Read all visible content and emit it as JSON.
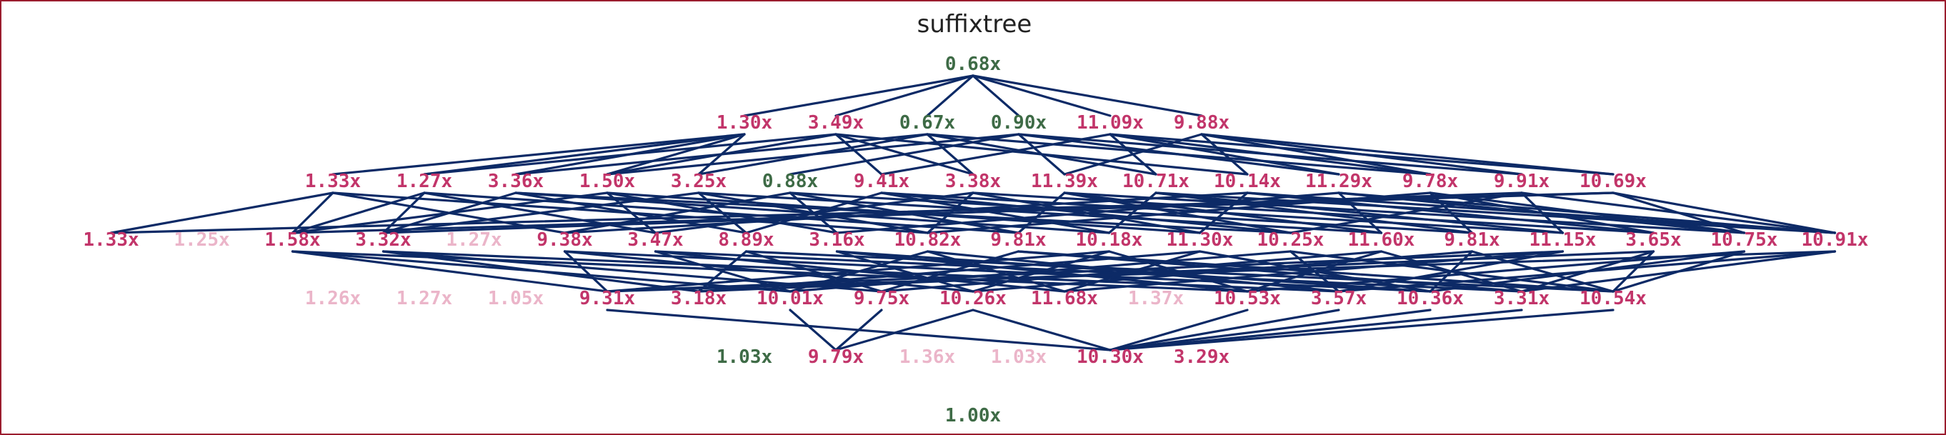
{
  "title": "suffixtree",
  "colors": {
    "edge": "#0d2a66",
    "fast": "#3e6b46",
    "slow": "#c2356a",
    "faded": "#ebb5c9",
    "frame": "#9b1c2e"
  },
  "levels": [
    [
      {
        "label": "0.68x",
        "kind": "fast"
      }
    ],
    [
      {
        "label": "1.30x",
        "kind": "slow"
      },
      {
        "label": "3.49x",
        "kind": "slow"
      },
      {
        "label": "0.67x",
        "kind": "fast"
      },
      {
        "label": "0.90x",
        "kind": "fast"
      },
      {
        "label": "11.09x",
        "kind": "slow"
      },
      {
        "label": "9.88x",
        "kind": "slow"
      }
    ],
    [
      {
        "label": "1.33x",
        "kind": "slow"
      },
      {
        "label": "1.27x",
        "kind": "slow"
      },
      {
        "label": "3.36x",
        "kind": "slow"
      },
      {
        "label": "1.50x",
        "kind": "slow"
      },
      {
        "label": "3.25x",
        "kind": "slow"
      },
      {
        "label": "0.88x",
        "kind": "fast"
      },
      {
        "label": "9.41x",
        "kind": "slow"
      },
      {
        "label": "3.38x",
        "kind": "slow"
      },
      {
        "label": "11.39x",
        "kind": "slow"
      },
      {
        "label": "10.71x",
        "kind": "slow"
      },
      {
        "label": "10.14x",
        "kind": "slow"
      },
      {
        "label": "11.29x",
        "kind": "slow"
      },
      {
        "label": "9.78x",
        "kind": "slow"
      },
      {
        "label": "9.91x",
        "kind": "slow"
      },
      {
        "label": "10.69x",
        "kind": "slow"
      }
    ],
    [
      {
        "label": "1.33x",
        "kind": "slow"
      },
      {
        "label": "1.25x",
        "kind": "faded"
      },
      {
        "label": "1.58x",
        "kind": "slow"
      },
      {
        "label": "3.32x",
        "kind": "slow"
      },
      {
        "label": "1.27x",
        "kind": "faded"
      },
      {
        "label": "9.38x",
        "kind": "slow"
      },
      {
        "label": "3.47x",
        "kind": "slow"
      },
      {
        "label": "8.89x",
        "kind": "slow"
      },
      {
        "label": "3.16x",
        "kind": "slow"
      },
      {
        "label": "10.82x",
        "kind": "slow"
      },
      {
        "label": "9.81x",
        "kind": "slow"
      },
      {
        "label": "10.18x",
        "kind": "slow"
      },
      {
        "label": "11.30x",
        "kind": "slow"
      },
      {
        "label": "10.25x",
        "kind": "slow"
      },
      {
        "label": "11.60x",
        "kind": "slow"
      },
      {
        "label": "9.81x",
        "kind": "slow"
      },
      {
        "label": "11.15x",
        "kind": "slow"
      },
      {
        "label": "3.65x",
        "kind": "slow"
      },
      {
        "label": "10.75x",
        "kind": "slow"
      },
      {
        "label": "10.91x",
        "kind": "slow"
      }
    ],
    [
      {
        "label": "1.26x",
        "kind": "faded"
      },
      {
        "label": "1.27x",
        "kind": "faded"
      },
      {
        "label": "1.05x",
        "kind": "faded"
      },
      {
        "label": "9.31x",
        "kind": "slow"
      },
      {
        "label": "3.18x",
        "kind": "slow"
      },
      {
        "label": "10.01x",
        "kind": "slow"
      },
      {
        "label": "9.75x",
        "kind": "slow"
      },
      {
        "label": "10.26x",
        "kind": "slow"
      },
      {
        "label": "11.68x",
        "kind": "slow"
      },
      {
        "label": "1.37x",
        "kind": "faded"
      },
      {
        "label": "10.53x",
        "kind": "slow"
      },
      {
        "label": "3.57x",
        "kind": "slow"
      },
      {
        "label": "10.36x",
        "kind": "slow"
      },
      {
        "label": "3.31x",
        "kind": "slow"
      },
      {
        "label": "10.54x",
        "kind": "slow"
      }
    ],
    [
      {
        "label": "1.03x",
        "kind": "fast"
      },
      {
        "label": "9.79x",
        "kind": "slow"
      },
      {
        "label": "1.36x",
        "kind": "faded"
      },
      {
        "label": "1.03x",
        "kind": "faded"
      },
      {
        "label": "10.30x",
        "kind": "slow"
      },
      {
        "label": "3.29x",
        "kind": "slow"
      }
    ],
    [
      {
        "label": "1.00x",
        "kind": "fast"
      }
    ]
  ],
  "edges": [
    [
      0,
      0,
      1,
      0
    ],
    [
      0,
      0,
      1,
      1
    ],
    [
      0,
      0,
      1,
      2
    ],
    [
      0,
      0,
      1,
      3
    ],
    [
      0,
      0,
      1,
      4
    ],
    [
      0,
      0,
      1,
      5
    ],
    [
      1,
      0,
      2,
      0
    ],
    [
      1,
      0,
      2,
      1
    ],
    [
      1,
      0,
      2,
      2
    ],
    [
      1,
      0,
      2,
      3
    ],
    [
      1,
      0,
      2,
      4
    ],
    [
      1,
      1,
      2,
      1
    ],
    [
      1,
      1,
      2,
      3
    ],
    [
      1,
      1,
      2,
      6
    ],
    [
      1,
      1,
      2,
      7
    ],
    [
      1,
      1,
      2,
      10
    ],
    [
      1,
      2,
      2,
      2
    ],
    [
      1,
      2,
      2,
      4
    ],
    [
      1,
      2,
      2,
      7
    ],
    [
      1,
      2,
      2,
      9
    ],
    [
      1,
      2,
      2,
      12
    ],
    [
      1,
      3,
      2,
      3
    ],
    [
      1,
      3,
      2,
      5
    ],
    [
      1,
      3,
      2,
      8
    ],
    [
      1,
      3,
      2,
      11
    ],
    [
      1,
      3,
      2,
      13
    ],
    [
      1,
      4,
      2,
      6
    ],
    [
      1,
      4,
      2,
      9
    ],
    [
      1,
      4,
      2,
      11
    ],
    [
      1,
      4,
      2,
      12
    ],
    [
      1,
      4,
      2,
      14
    ],
    [
      1,
      5,
      2,
      8
    ],
    [
      1,
      5,
      2,
      10
    ],
    [
      1,
      5,
      2,
      12
    ],
    [
      1,
      5,
      2,
      13
    ],
    [
      1,
      5,
      2,
      14
    ],
    [
      2,
      0,
      3,
      0
    ],
    [
      2,
      0,
      3,
      2
    ],
    [
      2,
      0,
      3,
      5
    ],
    [
      2,
      0,
      3,
      9
    ],
    [
      2,
      1,
      3,
      2
    ],
    [
      2,
      1,
      3,
      3
    ],
    [
      2,
      1,
      3,
      6
    ],
    [
      2,
      1,
      3,
      10
    ],
    [
      2,
      2,
      3,
      3
    ],
    [
      2,
      2,
      3,
      7
    ],
    [
      2,
      2,
      3,
      11
    ],
    [
      2,
      2,
      3,
      13
    ],
    [
      2,
      3,
      3,
      2
    ],
    [
      2,
      3,
      3,
      6
    ],
    [
      2,
      3,
      3,
      8
    ],
    [
      2,
      3,
      3,
      12
    ],
    [
      2,
      4,
      3,
      3
    ],
    [
      2,
      4,
      3,
      7
    ],
    [
      2,
      4,
      3,
      9
    ],
    [
      2,
      4,
      3,
      14
    ],
    [
      2,
      5,
      3,
      5
    ],
    [
      2,
      5,
      3,
      8
    ],
    [
      2,
      5,
      3,
      10
    ],
    [
      2,
      5,
      3,
      15
    ],
    [
      2,
      6,
      3,
      7
    ],
    [
      2,
      6,
      3,
      11
    ],
    [
      2,
      6,
      3,
      13
    ],
    [
      2,
      6,
      3,
      16
    ],
    [
      2,
      7,
      3,
      6
    ],
    [
      2,
      7,
      3,
      9
    ],
    [
      2,
      7,
      3,
      12
    ],
    [
      2,
      7,
      3,
      17
    ],
    [
      2,
      8,
      3,
      10
    ],
    [
      2,
      8,
      3,
      13
    ],
    [
      2,
      8,
      3,
      14
    ],
    [
      2,
      8,
      3,
      18
    ],
    [
      2,
      9,
      3,
      11
    ],
    [
      2,
      9,
      3,
      15
    ],
    [
      2,
      9,
      3,
      16
    ],
    [
      2,
      9,
      3,
      19
    ],
    [
      2,
      10,
      3,
      5
    ],
    [
      2,
      10,
      3,
      12
    ],
    [
      2,
      10,
      3,
      17
    ],
    [
      2,
      10,
      3,
      19
    ],
    [
      2,
      11,
      3,
      8
    ],
    [
      2,
      11,
      3,
      14
    ],
    [
      2,
      11,
      3,
      18
    ],
    [
      2,
      11,
      3,
      19
    ],
    [
      2,
      12,
      3,
      9
    ],
    [
      2,
      12,
      3,
      15
    ],
    [
      2,
      12,
      3,
      17
    ],
    [
      2,
      12,
      3,
      18
    ],
    [
      2,
      13,
      3,
      3
    ],
    [
      2,
      13,
      3,
      13
    ],
    [
      2,
      13,
      3,
      16
    ],
    [
      2,
      13,
      3,
      19
    ],
    [
      2,
      14,
      3,
      0
    ],
    [
      2,
      14,
      3,
      2
    ],
    [
      2,
      14,
      3,
      18
    ],
    [
      2,
      14,
      3,
      19
    ],
    [
      3,
      2,
      4,
      3
    ],
    [
      3,
      2,
      4,
      5
    ],
    [
      3,
      2,
      4,
      10
    ],
    [
      3,
      3,
      4,
      4
    ],
    [
      3,
      3,
      4,
      6
    ],
    [
      3,
      3,
      4,
      11
    ],
    [
      3,
      5,
      4,
      3
    ],
    [
      3,
      5,
      4,
      7
    ],
    [
      3,
      5,
      4,
      12
    ],
    [
      3,
      6,
      4,
      5
    ],
    [
      3,
      6,
      4,
      8
    ],
    [
      3,
      6,
      4,
      13
    ],
    [
      3,
      7,
      4,
      4
    ],
    [
      3,
      7,
      4,
      6
    ],
    [
      3,
      7,
      4,
      14
    ],
    [
      3,
      8,
      4,
      7
    ],
    [
      3,
      8,
      4,
      10
    ],
    [
      3,
      8,
      4,
      12
    ],
    [
      3,
      9,
      4,
      5
    ],
    [
      3,
      9,
      4,
      8
    ],
    [
      3,
      9,
      4,
      11
    ],
    [
      3,
      10,
      4,
      6
    ],
    [
      3,
      10,
      4,
      13
    ],
    [
      3,
      10,
      4,
      14
    ],
    [
      3,
      11,
      4,
      3
    ],
    [
      3,
      11,
      4,
      7
    ],
    [
      3,
      11,
      4,
      10
    ],
    [
      3,
      12,
      4,
      4
    ],
    [
      3,
      12,
      4,
      8
    ],
    [
      3,
      12,
      4,
      12
    ],
    [
      3,
      13,
      4,
      5
    ],
    [
      3,
      13,
      4,
      11
    ],
    [
      3,
      13,
      4,
      14
    ],
    [
      3,
      14,
      4,
      6
    ],
    [
      3,
      14,
      4,
      10
    ],
    [
      3,
      14,
      4,
      13
    ],
    [
      3,
      15,
      4,
      7
    ],
    [
      3,
      15,
      4,
      12
    ],
    [
      3,
      15,
      4,
      14
    ],
    [
      3,
      16,
      4,
      3
    ],
    [
      3,
      16,
      4,
      8
    ],
    [
      3,
      16,
      4,
      11
    ],
    [
      3,
      17,
      4,
      4
    ],
    [
      3,
      17,
      4,
      13
    ],
    [
      3,
      17,
      4,
      14
    ],
    [
      3,
      18,
      4,
      10
    ],
    [
      3,
      18,
      4,
      12
    ],
    [
      3,
      18,
      4,
      14
    ],
    [
      3,
      19,
      4,
      3
    ],
    [
      3,
      19,
      4,
      11
    ],
    [
      3,
      19,
      4,
      13
    ],
    [
      4,
      3,
      5,
      4
    ],
    [
      4,
      5,
      5,
      1
    ],
    [
      4,
      6,
      5,
      1
    ],
    [
      4,
      7,
      5,
      1
    ],
    [
      4,
      7,
      5,
      4
    ],
    [
      4,
      10,
      5,
      4
    ],
    [
      4,
      12,
      5,
      4
    ],
    [
      4,
      13,
      5,
      4
    ],
    [
      4,
      14,
      5,
      4
    ],
    [
      4,
      11,
      5,
      4
    ]
  ]
}
